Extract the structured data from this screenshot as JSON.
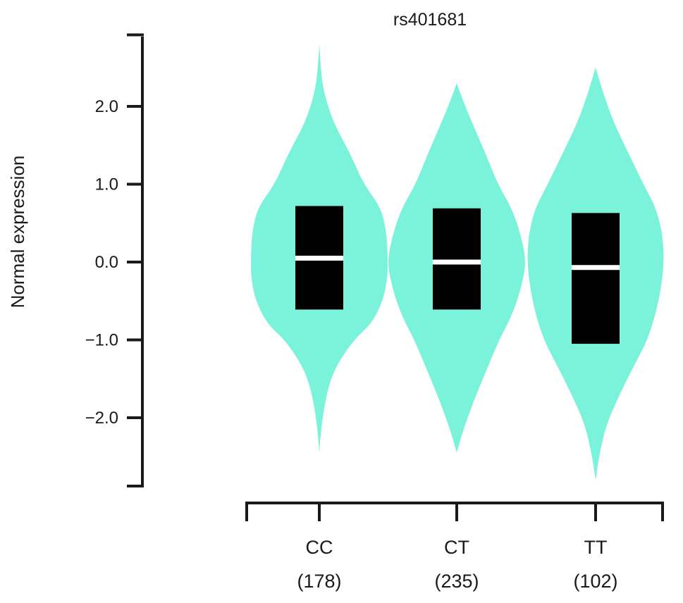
{
  "chart_data": {
    "type": "violin",
    "title": "rs401681",
    "ylabel": "Normal expression",
    "xlabel": "",
    "ylim": [
      -2.9,
      2.9
    ],
    "yticks": [
      {
        "value": 2.0,
        "label": "2.0"
      },
      {
        "value": 1.0,
        "label": "1.0"
      },
      {
        "value": 0.0,
        "label": "0.0"
      },
      {
        "value": -1.0,
        "label": "−1.0"
      },
      {
        "value": -2.0,
        "label": "−2.0"
      }
    ],
    "categories": [
      "CC",
      "CT",
      "TT"
    ],
    "counts": [
      "(178)",
      "(235)",
      "(102)"
    ],
    "groups": [
      {
        "name": "CC",
        "median": 0.05,
        "q1": -0.61,
        "q3": 0.72,
        "profile": [
          [
            -2.45,
            0
          ],
          [
            -2.2,
            0.02
          ],
          [
            -1.8,
            0.08
          ],
          [
            -1.4,
            0.2
          ],
          [
            -1.0,
            0.5
          ],
          [
            -0.8,
            0.76
          ],
          [
            -0.5,
            0.93
          ],
          [
            -0.2,
            1.0
          ],
          [
            0.1,
            1.0
          ],
          [
            0.4,
            0.98
          ],
          [
            0.7,
            0.9
          ],
          [
            1.0,
            0.65
          ],
          [
            1.4,
            0.45
          ],
          [
            1.8,
            0.2
          ],
          [
            2.2,
            0.06
          ],
          [
            2.5,
            0.02
          ],
          [
            2.8,
            0
          ]
        ]
      },
      {
        "name": "CT",
        "median": 0.0,
        "q1": -0.61,
        "q3": 0.69,
        "profile": [
          [
            -2.45,
            0
          ],
          [
            -2.2,
            0.08
          ],
          [
            -1.8,
            0.24
          ],
          [
            -1.4,
            0.43
          ],
          [
            -1.0,
            0.62
          ],
          [
            -0.7,
            0.8
          ],
          [
            -0.4,
            0.92
          ],
          [
            -0.1,
            1.0
          ],
          [
            0.1,
            1.0
          ],
          [
            0.4,
            0.92
          ],
          [
            0.7,
            0.8
          ],
          [
            1.0,
            0.6
          ],
          [
            1.4,
            0.42
          ],
          [
            1.8,
            0.22
          ],
          [
            2.1,
            0.08
          ],
          [
            2.3,
            0
          ]
        ]
      },
      {
        "name": "TT",
        "median": -0.07,
        "q1": -1.05,
        "q3": 0.63,
        "profile": [
          [
            -2.8,
            0
          ],
          [
            -2.5,
            0.05
          ],
          [
            -2.1,
            0.15
          ],
          [
            -1.7,
            0.35
          ],
          [
            -1.3,
            0.58
          ],
          [
            -1.0,
            0.76
          ],
          [
            -0.6,
            0.9
          ],
          [
            -0.2,
            0.98
          ],
          [
            0.1,
            1.0
          ],
          [
            0.4,
            0.97
          ],
          [
            0.7,
            0.88
          ],
          [
            1.0,
            0.7
          ],
          [
            1.4,
            0.48
          ],
          [
            1.8,
            0.26
          ],
          [
            2.2,
            0.1
          ],
          [
            2.5,
            0
          ]
        ]
      }
    ],
    "colors": {
      "violin": "#74f2d8",
      "box": "#000000",
      "median": "#ffffff",
      "axis": "#1a1a1a"
    },
    "grid": false,
    "legend": "none"
  }
}
